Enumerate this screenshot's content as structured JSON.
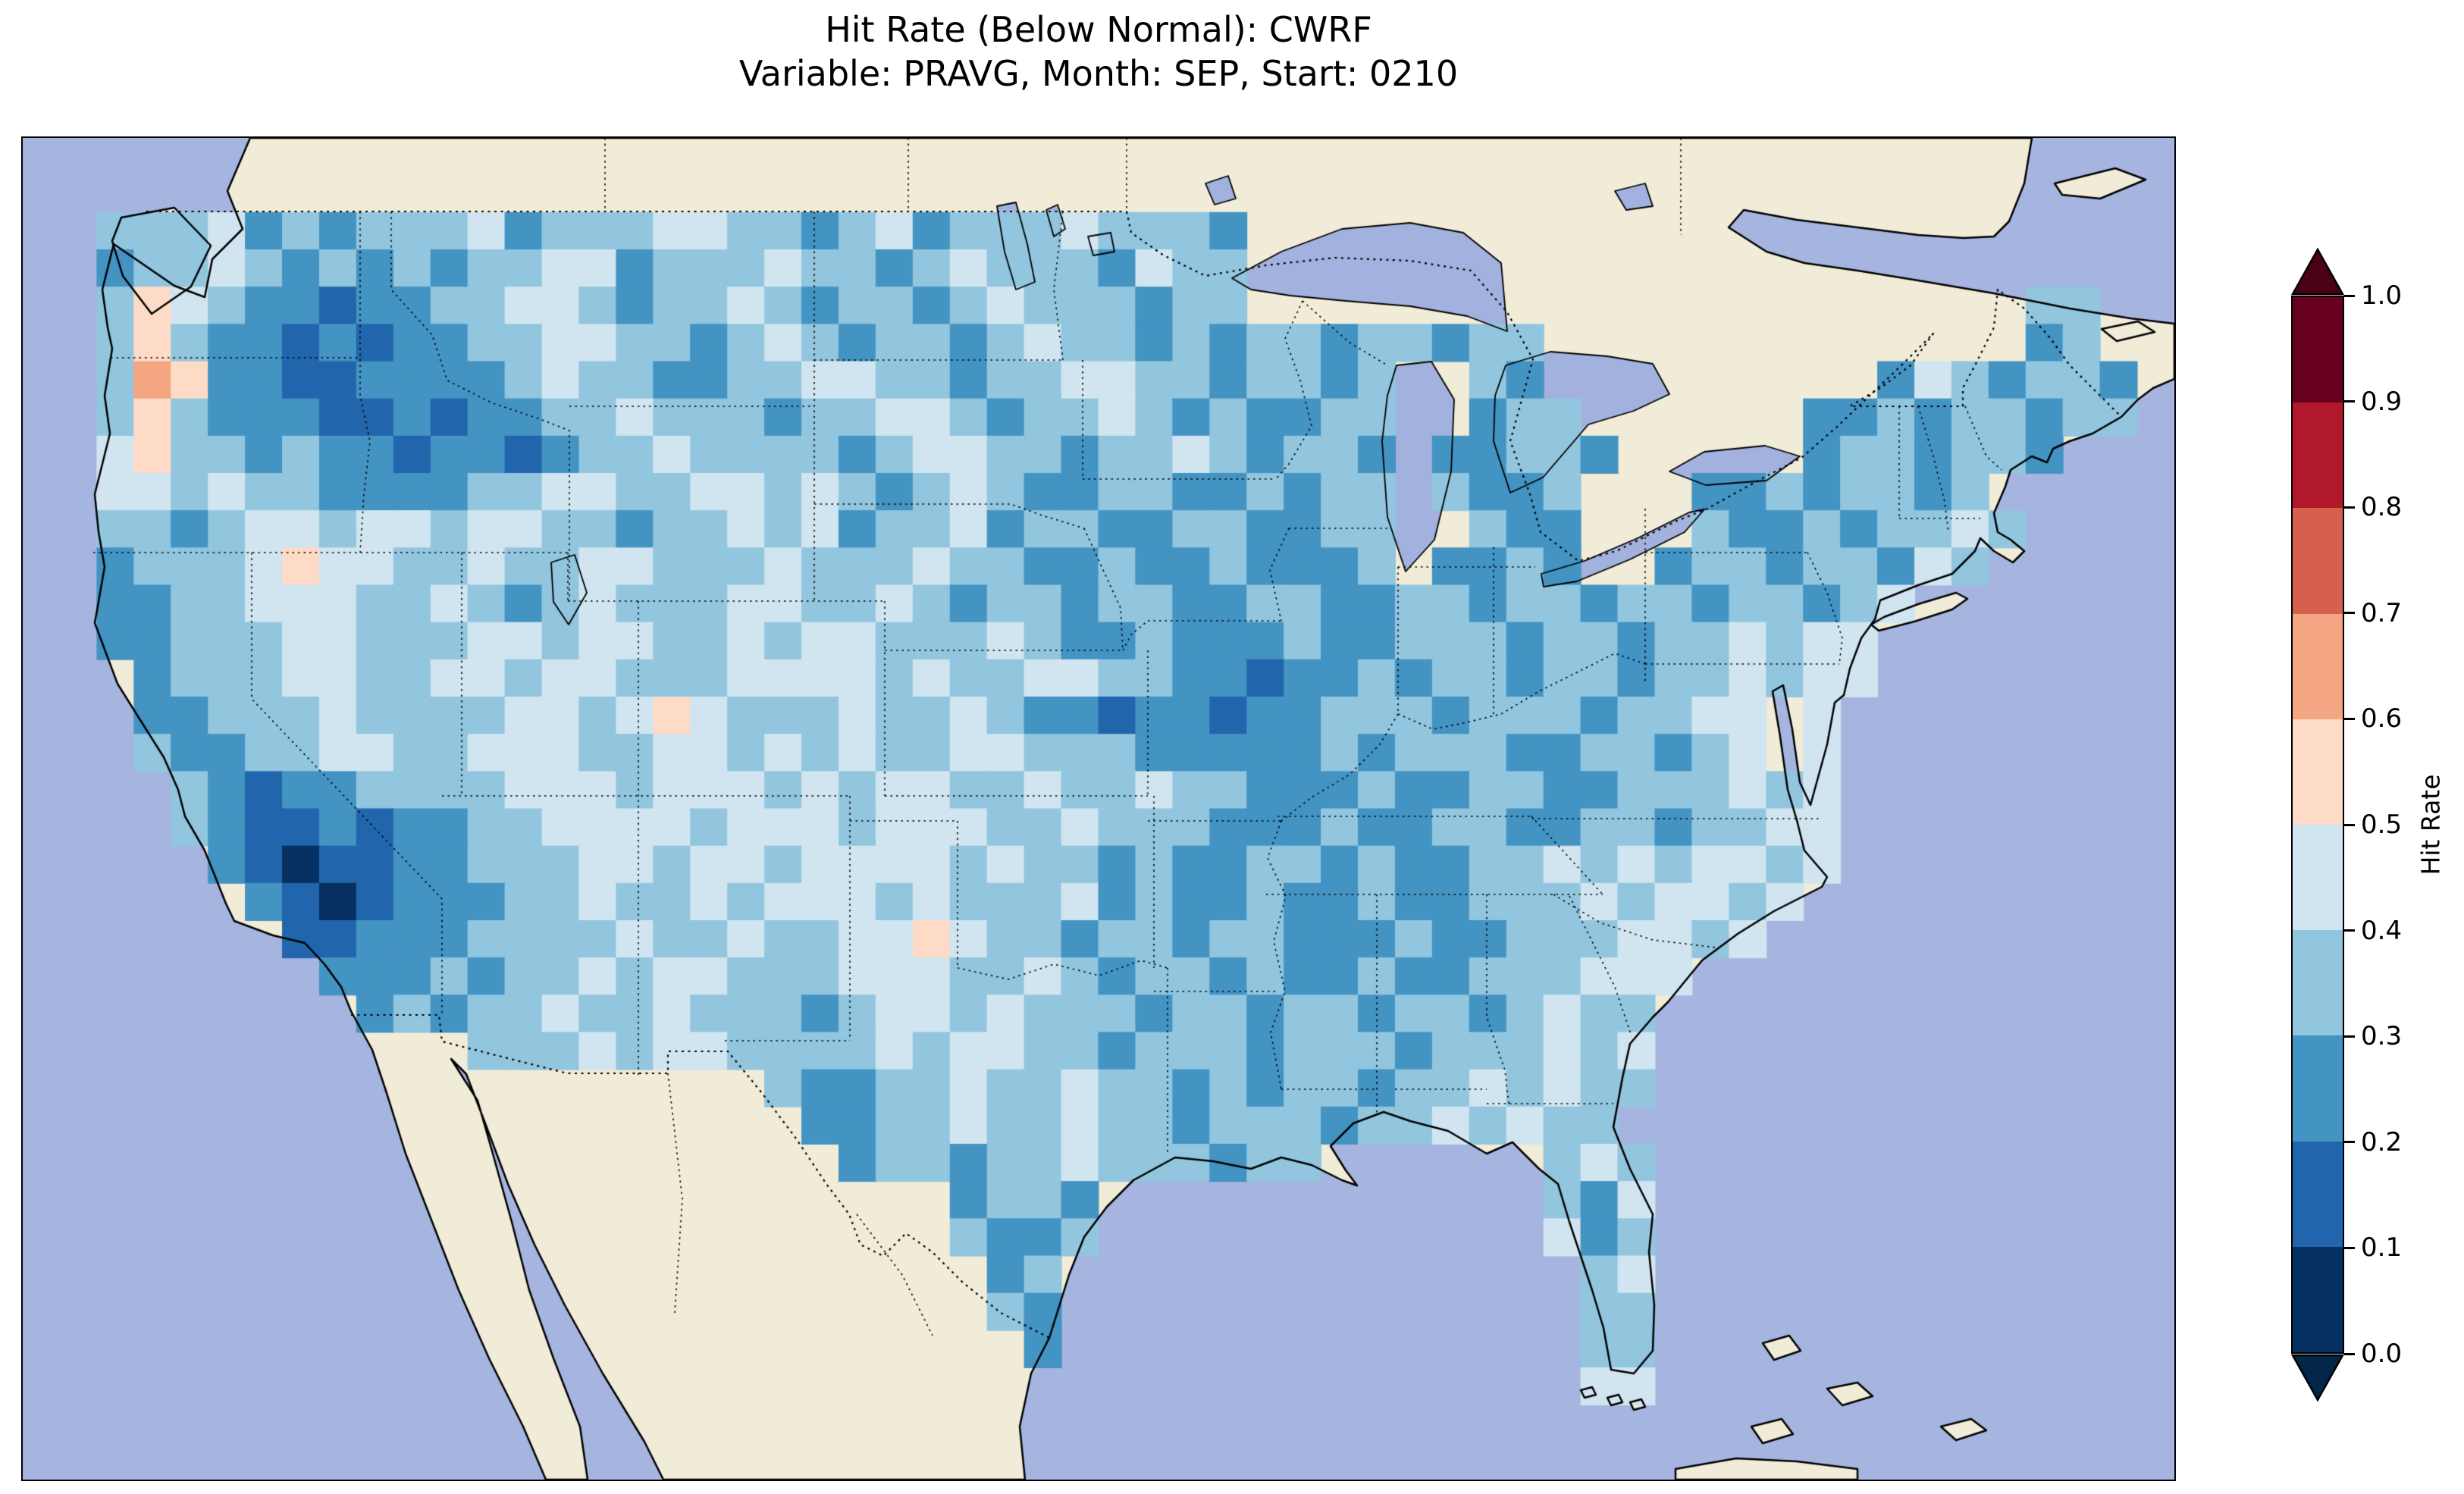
{
  "header": {
    "title_line1": "Hit Rate (Below Normal): CWRF",
    "title_line2": "Variable: PRAVG, Month: SEP, Start: 0210"
  },
  "colorbar": {
    "label": "Hit Rate",
    "tick_labels": [
      "1.0",
      "0.9",
      "0.8",
      "0.7",
      "0.6",
      "0.5",
      "0.4",
      "0.3",
      "0.2",
      "0.1",
      "0.0"
    ],
    "bin_colors_low_to_high": [
      "#053061",
      "#2166ac",
      "#4393c3",
      "#92c5de",
      "#d1e5f0",
      "#fddbc7",
      "#f4a582",
      "#d6604d",
      "#b2182b",
      "#67001f"
    ],
    "under_arrow_color": "#042649",
    "over_arrow_color": "#4a0116"
  },
  "map_style": {
    "ocean_color": "#a6b4e0",
    "lake_color": "#a2b1de",
    "land_color": "#f0ecd8",
    "coastline_color": "#000000"
  },
  "chart_data": {
    "type": "heatmap",
    "title": "Hit Rate (Below Normal): CWRF",
    "subtitle": "Variable: PRAVG, Month: SEP, Start: 0210",
    "region_shown": "Contiguous United States",
    "colorbar_label": "Hit Rate",
    "colorbar_ticks": [
      0.0,
      0.1,
      0.2,
      0.3,
      0.4,
      0.5,
      0.6,
      0.7,
      0.8,
      0.9,
      1.0
    ],
    "value_range": [
      0,
      1
    ],
    "legend_position": "right",
    "grid": {
      "cols": 58,
      "rows": 36,
      "cell_value_encoding": {
        "0": 0.05,
        "1": 0.15,
        "2": 0.25,
        "3": 0.35,
        "4": 0.45,
        "5": 0.55,
        "6": 0.65
      },
      "no_data_char": ".",
      "rows_data": [
        "..........................................................",
        "..........................................................",
        "..3334232333423334433234233343332.........................",
        "..2334323232334423334332343332433.........................",
        "..3543221223344323343233234333233.....................33..",
        "..353221212233443323432332343323233233233.............23..",
        "..36522112222343322334433233443323323..32.........2432332.",
        "..35322211212233433323344323343232233..233......223233233.",
        "..45332322122123343333234433233432332.22332.....2332332...",
        "..44343322223344334434323432233223233.3223...22323323.....",
        "..33234434434433233434233423322332233..322...322323343....",
        "..23334544334334433343334332232232223.2232..233233243.....",
        "..2233444334323433344334323323322332233233233233234.......",
        "..223334433344344334344333432232223223332332334344........",
        "...23334433443443334444343344332212232332332334344........",
        "...22333433334434543334334322122122333233323344.4.........",
        "...32233443344433443434334433322222323332233234.4.........",
        "....321223333444344434344334334332223223322333434.........",
        "....321121223344443444344433433322232233223323344.........",
        ".....21011223334434434444343323223323223343434434.........",
        "......210122233433434443433342322322322333434434..........",
        ".......1122233334334334454332332332223223334434...........",
        "........2223233434433344433432332322322333444.............",
        ".........23233433433323443433323323323323433..............",
        "............33343443333434433233323332333434..............",
        "....................322334334332323323343433..............",
        ".....................2233433433233323343433...............",
        "......................2332334333233......343..............",
        ".........................2332............324..............",
        ".........................3223............423..............",
        "..........................23..............34..............",
        "..........................32..............33..............",
        "...........................2..............33..............",
        "..........................................44..............",
        "..........................................................",
        ".........................................................."
      ]
    }
  }
}
